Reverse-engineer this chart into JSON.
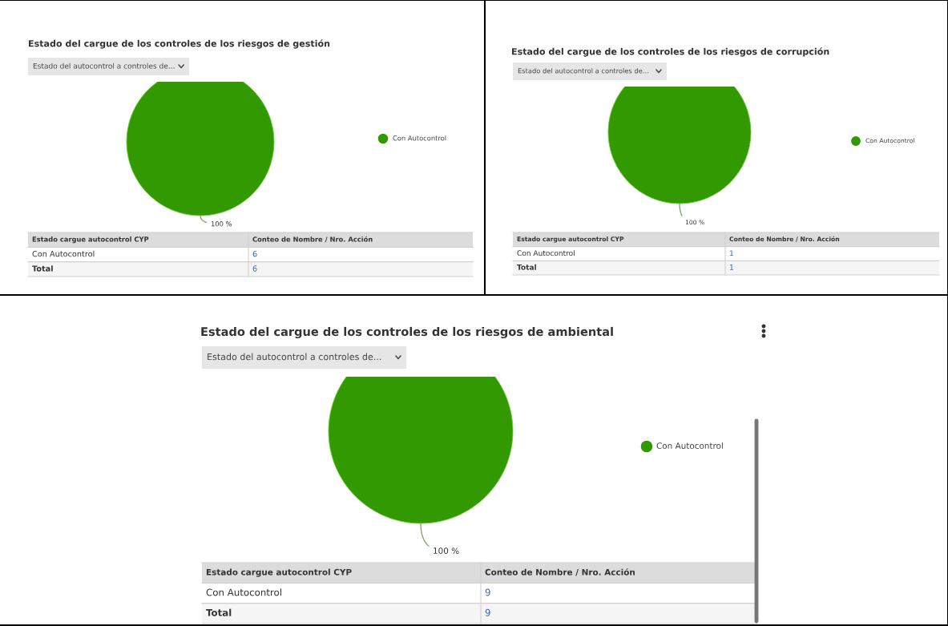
{
  "chart_data": [
    {
      "type": "pie",
      "title": "Estado del cargue de los controles de los riesgos de gestión",
      "subtitle": "Estado del autocontrol a controles de...",
      "categories": [
        "Con Autocontrol"
      ],
      "values": [
        100
      ],
      "colors": [
        "#339900"
      ],
      "value_labels": [
        "100 %"
      ],
      "legend": "right",
      "annotations": [
        "Estado cargue autocontrol CYP",
        "Conteo de Nombre / Nro. Acción",
        "6",
        "Total"
      ],
      "totals": [
        "6"
      ]
    },
    {
      "type": "pie",
      "title": "Estado del cargue de los controles de los riesgos de corrupción",
      "subtitle": "Estado del autocontrol a controles de...",
      "categories": [
        "Con Autocontrol"
      ],
      "values": [
        100
      ],
      "colors": [
        "#339900"
      ],
      "value_labels": [
        "100 %"
      ],
      "legend": "right",
      "annotations": [
        "Estado cargue autocontrol CYP",
        "Conteo de Nombre / Nro. Acción",
        "1",
        "Total"
      ],
      "totals": [
        "1"
      ]
    },
    {
      "type": "pie",
      "title": "Estado del cargue de los controles de los riesgos de ambiental",
      "subtitle": "Estado del autocontrol a controles de...",
      "categories": [
        "Con Autocontrol"
      ],
      "values": [
        100
      ],
      "colors": [
        "#339900"
      ],
      "value_labels": [
        "100 %"
      ],
      "legend": "right",
      "annotations": [
        "Estado cargue autocontrol CYP",
        "Conteo de Nombre / Nro. Acción",
        "9",
        "Total"
      ],
      "totals": [
        "9"
      ]
    }
  ]
}
